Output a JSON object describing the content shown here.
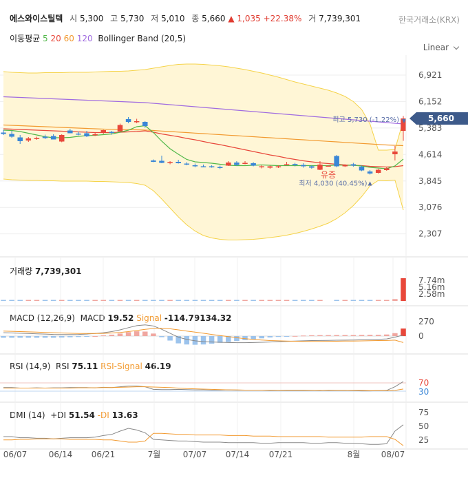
{
  "header": {
    "name": "에스와이스틸텍",
    "open_label": "시",
    "open": "5,300",
    "high_label": "고",
    "high": "5,730",
    "low_label": "저",
    "low": "5,010",
    "close_label": "종",
    "close": "5,660",
    "change": "▲ 1,035 +22.38%",
    "volume_label": "거",
    "volume": "7,739,301",
    "exchange": "한국거래소(KRX)"
  },
  "legend": {
    "ma_label": "이동평균",
    "ma5": "5",
    "ma20": "20",
    "ma60": "60",
    "ma120": "120",
    "bollinger": "Bollinger Band (20,5)"
  },
  "scale_mode": "Linear",
  "colors": {
    "up": "#e8473a",
    "down": "#3a86d6",
    "ma5": "#52b84a",
    "ma20": "#e8473a",
    "ma60": "#f29a30",
    "ma120": "#a06be0",
    "band_fill": "#fff6d6",
    "band_line": "#f5d34a",
    "badge": "#3d5a8a"
  },
  "price_axis": [
    "6,921",
    "6,152",
    "5,383",
    "4,614",
    "3,845",
    "3,076",
    "2,307"
  ],
  "current_price_badge": "5,660",
  "annotations": {
    "high": "최고 5,730 (-1.22%)",
    "low": "최저 4,030 (40.45%)",
    "suspended": "유증"
  },
  "volume_panel": {
    "label": "거래량",
    "value": "7,739,301",
    "axis": [
      "7.74m",
      "5.16m",
      "2.58m"
    ]
  },
  "macd_panel": {
    "title": "MACD (12,26,9)",
    "macd_label": "MACD",
    "macd_value": "19.52",
    "signal_label": "Signal",
    "signal_value": "-114.79134.32",
    "axis": [
      "270",
      "0"
    ]
  },
  "rsi_panel": {
    "title": "RSI (14,9)",
    "rsi_label": "RSI",
    "rsi_value": "75.11",
    "signal_label": "RSI-Signal",
    "signal_value": "46.19",
    "axis": [
      "70",
      "30"
    ]
  },
  "dmi_panel": {
    "title": "DMI (14)",
    "pdi_label": "+DI",
    "pdi_value": "51.54",
    "mdi_label": "-DI",
    "mdi_value": "13.63",
    "axis": [
      "75",
      "50",
      "25"
    ]
  },
  "x_axis": [
    "06/07",
    "06/14",
    "06/21",
    "7월",
    "07/07",
    "07/14",
    "07/21",
    "8월",
    "08/07"
  ],
  "chart_data": {
    "type": "candlestick",
    "ylim": [
      2000,
      7300
    ],
    "candles": [
      {
        "o": 5250,
        "h": 5330,
        "l": 5180,
        "c": 5210
      },
      {
        "o": 5210,
        "h": 5300,
        "l": 5100,
        "c": 5130
      },
      {
        "o": 5110,
        "h": 5180,
        "l": 4920,
        "c": 5000
      },
      {
        "o": 5020,
        "h": 5120,
        "l": 4980,
        "c": 5080
      },
      {
        "o": 5090,
        "h": 5130,
        "l": 5040,
        "c": 5090
      },
      {
        "o": 5130,
        "h": 5190,
        "l": 5060,
        "c": 5090
      },
      {
        "o": 5150,
        "h": 5200,
        "l": 5050,
        "c": 5050
      },
      {
        "o": 4990,
        "h": 5200,
        "l": 4970,
        "c": 5180
      },
      {
        "o": 5310,
        "h": 5360,
        "l": 5260,
        "c": 5230
      },
      {
        "o": 5220,
        "h": 5280,
        "l": 5170,
        "c": 5200
      },
      {
        "o": 5230,
        "h": 5300,
        "l": 5120,
        "c": 5140
      },
      {
        "o": 5200,
        "h": 5240,
        "l": 5150,
        "c": 5200
      },
      {
        "o": 5250,
        "h": 5330,
        "l": 5210,
        "c": 5320
      },
      {
        "o": 5270,
        "h": 5300,
        "l": 5190,
        "c": 5260
      },
      {
        "o": 5280,
        "h": 5510,
        "l": 5270,
        "c": 5470
      },
      {
        "o": 5640,
        "h": 5700,
        "l": 5520,
        "c": 5560
      },
      {
        "o": 5560,
        "h": 5650,
        "l": 5520,
        "c": 5580
      },
      {
        "o": 5560,
        "h": 5580,
        "l": 5390,
        "c": 5440
      },
      {
        "o": 4440,
        "h": 4470,
        "l": 4390,
        "c": 4400
      },
      {
        "o": 4430,
        "h": 4580,
        "l": 4360,
        "c": 4370
      },
      {
        "o": 4360,
        "h": 4420,
        "l": 4330,
        "c": 4390
      },
      {
        "o": 4400,
        "h": 4460,
        "l": 4350,
        "c": 4360
      },
      {
        "o": 4350,
        "h": 4390,
        "l": 4300,
        "c": 4320
      },
      {
        "o": 4300,
        "h": 4350,
        "l": 4240,
        "c": 4270
      },
      {
        "o": 4270,
        "h": 4320,
        "l": 4240,
        "c": 4260
      },
      {
        "o": 4270,
        "h": 4300,
        "l": 4230,
        "c": 4260
      },
      {
        "o": 4250,
        "h": 4290,
        "l": 4190,
        "c": 4220
      },
      {
        "o": 4290,
        "h": 4420,
        "l": 4280,
        "c": 4380
      },
      {
        "o": 4380,
        "h": 4420,
        "l": 4280,
        "c": 4310
      },
      {
        "o": 4340,
        "h": 4420,
        "l": 4330,
        "c": 4370
      },
      {
        "o": 4360,
        "h": 4390,
        "l": 4270,
        "c": 4290
      },
      {
        "o": 4240,
        "h": 4300,
        "l": 4210,
        "c": 4270
      },
      {
        "o": 4230,
        "h": 4290,
        "l": 4200,
        "c": 4270
      },
      {
        "o": 4260,
        "h": 4300,
        "l": 4220,
        "c": 4270
      },
      {
        "o": 4330,
        "h": 4400,
        "l": 4300,
        "c": 4330
      },
      {
        "o": 4340,
        "h": 4370,
        "l": 4270,
        "c": 4330
      },
      {
        "o": 4310,
        "h": 4360,
        "l": 4230,
        "c": 4270
      },
      {
        "o": 4270,
        "h": 4300,
        "l": 4200,
        "c": 4230
      },
      {
        "o": 4170,
        "h": 4420,
        "l": 4160,
        "c": 4320
      },
      {
        "o": 4290,
        "h": 4290,
        "l": 4290,
        "c": 4290
      },
      {
        "o": 4570,
        "h": 4600,
        "l": 4240,
        "c": 4270
      },
      {
        "o": 4270,
        "h": 4330,
        "l": 4250,
        "c": 4310
      },
      {
        "o": 4330,
        "h": 4370,
        "l": 4260,
        "c": 4290
      },
      {
        "o": 4260,
        "h": 4290,
        "l": 4130,
        "c": 4150
      },
      {
        "o": 4120,
        "h": 4160,
        "l": 4030,
        "c": 4060
      },
      {
        "o": 4080,
        "h": 4200,
        "l": 4060,
        "c": 4170
      },
      {
        "o": 4160,
        "h": 4240,
        "l": 4140,
        "c": 4210
      },
      {
        "o": 4620,
        "h": 4860,
        "l": 4440,
        "c": 4700
      },
      {
        "o": 5300,
        "h": 5730,
        "l": 5010,
        "c": 5660
      }
    ],
    "ma5": [
      5320,
      5310,
      5280,
      5230,
      5180,
      5130,
      5100,
      5100,
      5110,
      5140,
      5160,
      5170,
      5190,
      5210,
      5260,
      5320,
      5420,
      5450,
      5250,
      5000,
      4780,
      4620,
      4470,
      4400,
      4380,
      4360,
      4330,
      4300,
      4290,
      4290,
      4300,
      4310,
      4300,
      4290,
      4290,
      4290,
      4290,
      4290,
      4290,
      4290,
      4310,
      4300,
      4300,
      4280,
      4240,
      4220,
      4200,
      4280,
      4480
    ],
    "ma20": [
      5360,
      5350,
      5340,
      5330,
      5320,
      5310,
      5300,
      5290,
      5280,
      5270,
      5260,
      5250,
      5250,
      5250,
      5260,
      5270,
      5280,
      5300,
      5260,
      5210,
      5170,
      5130,
      5080,
      5040,
      4990,
      4940,
      4900,
      4850,
      4800,
      4750,
      4700,
      4650,
      4600,
      4560,
      4510,
      4470,
      4430,
      4400,
      4370,
      4350,
      4330,
      4310,
      4300,
      4290,
      4270,
      4260,
      4250,
      4260,
      4290
    ],
    "ma60": [
      5470,
      5460,
      5450,
      5440,
      5430,
      5420,
      5410,
      5400,
      5390,
      5380,
      5370,
      5360,
      5350,
      5345,
      5340,
      5335,
      5330,
      5325,
      5310,
      5295,
      5280,
      5265,
      5250,
      5235,
      5220,
      5205,
      5190,
      5175,
      5160,
      5145,
      5130,
      5115,
      5100,
      5085,
      5070,
      5055,
      5040,
      5025,
      5010,
      4995,
      4980,
      4965,
      4950,
      4935,
      4920,
      4905,
      4890,
      4880,
      4870
    ],
    "ma120": [
      6290,
      6280,
      6270,
      6260,
      6250,
      6240,
      6230,
      6220,
      6210,
      6200,
      6190,
      6180,
      6170,
      6160,
      6150,
      6140,
      6130,
      6120,
      6100,
      6080,
      6060,
      6040,
      6020,
      6000,
      5980,
      5960,
      5940,
      5920,
      5900,
      5880,
      5860,
      5840,
      5820,
      5800,
      5780,
      5760,
      5740,
      5720,
      5700,
      5680,
      5660,
      5640,
      5620,
      5600,
      5580,
      5560,
      5540,
      5520,
      5500
    ],
    "bb_upper": [
      7020,
      7000,
      6990,
      6980,
      6980,
      6990,
      6990,
      6990,
      7000,
      7000,
      7000,
      7010,
      7020,
      7030,
      7030,
      7040,
      7060,
      7080,
      7120,
      7160,
      7200,
      7230,
      7240,
      7240,
      7230,
      7210,
      7190,
      7160,
      7120,
      7080,
      7030,
      6980,
      6920,
      6860,
      6790,
      6720,
      6660,
      6600,
      6540,
      6480,
      6400,
      6300,
      6150,
      5920,
      5500,
      4740,
      4740,
      4760,
      5600
    ],
    "bb_lower": [
      3900,
      3880,
      3870,
      3860,
      3860,
      3850,
      3850,
      3840,
      3840,
      3840,
      3840,
      3830,
      3830,
      3820,
      3810,
      3800,
      3770,
      3720,
      3560,
      3320,
      3060,
      2800,
      2570,
      2390,
      2260,
      2190,
      2150,
      2130,
      2130,
      2140,
      2150,
      2170,
      2200,
      2230,
      2270,
      2320,
      2380,
      2450,
      2530,
      2620,
      2750,
      2920,
      3130,
      3390,
      3700,
      3860,
      3850,
      3870,
      3000
    ],
    "volume": [
      0.05,
      0.08,
      0.06,
      0.05,
      0.04,
      0.05,
      0.07,
      0.09,
      0.15,
      0.06,
      0.05,
      0.06,
      0.07,
      0.05,
      0.04,
      0.18,
      0.1,
      0.08,
      0.1,
      0.08,
      0.07,
      0.12,
      0.09,
      0.08,
      0.06,
      0.05,
      0.05,
      0.05,
      0.06,
      0.05,
      0.06,
      0.05,
      0.04,
      0.04,
      0.05,
      0.04,
      0.05,
      0.04,
      0.05,
      0.0,
      0.05,
      0.04,
      0.05,
      0.03,
      0.04,
      0.04,
      0.05,
      0.64,
      7.74
    ],
    "macd": [
      60,
      55,
      50,
      45,
      40,
      35,
      30,
      28,
      28,
      30,
      35,
      45,
      60,
      80,
      110,
      150,
      185,
      200,
      180,
      120,
      50,
      -20,
      -60,
      -85,
      -100,
      -105,
      -110,
      -115,
      -118,
      -118,
      -115,
      -110,
      -105,
      -100,
      -95,
      -90,
      -85,
      -80,
      -78,
      -76,
      -74,
      -72,
      -70,
      -66,
      -62,
      -58,
      -50,
      -20,
      19.52
    ],
    "signal": [
      90,
      85,
      80,
      75,
      70,
      65,
      60,
      55,
      50,
      47,
      45,
      45,
      48,
      55,
      65,
      80,
      100,
      120,
      135,
      140,
      130,
      110,
      90,
      70,
      50,
      30,
      10,
      -10,
      -30,
      -45,
      -60,
      -70,
      -80,
      -85,
      -90,
      -92,
      -94,
      -94,
      -94,
      -93,
      -92,
      -90,
      -88,
      -86,
      -84,
      -80,
      -78,
      -72,
      -114.79
    ],
    "rsi": [
      52,
      52,
      50,
      50,
      51,
      50,
      51,
      51,
      52,
      52,
      52,
      51,
      53,
      52,
      55,
      58,
      58,
      55,
      45,
      44,
      44,
      45,
      44,
      43,
      43,
      42,
      42,
      43,
      42,
      42,
      42,
      42,
      41,
      41,
      42,
      42,
      42,
      41,
      40,
      42,
      41,
      41,
      40,
      39,
      39,
      40,
      41,
      55,
      75.11
    ],
    "rsi_signal": [
      50,
      50,
      50,
      50,
      50,
      50,
      50,
      50,
      50,
      51,
      51,
      51,
      52,
      52,
      53,
      54,
      55,
      55,
      54,
      53,
      52,
      50,
      48,
      47,
      46,
      45,
      44,
      43,
      43,
      42,
      42,
      42,
      42,
      41,
      41,
      41,
      41,
      41,
      41,
      41,
      41,
      41,
      41,
      41,
      40,
      40,
      40,
      41,
      46.19
    ],
    "pdi": [
      30,
      30,
      28,
      28,
      27,
      27,
      26,
      27,
      28,
      28,
      28,
      29,
      32,
      34,
      40,
      45,
      42,
      37,
      25,
      24,
      23,
      22,
      22,
      21,
      20,
      20,
      20,
      19,
      19,
      19,
      19,
      18,
      18,
      19,
      19,
      19,
      19,
      18,
      18,
      19,
      19,
      18,
      18,
      17,
      16,
      16,
      17,
      40,
      51.54
    ],
    "mdi": [
      24,
      24,
      25,
      25,
      26,
      26,
      26,
      26,
      25,
      25,
      25,
      25,
      24,
      24,
      22,
      20,
      20,
      22,
      36,
      36,
      35,
      34,
      34,
      33,
      33,
      33,
      33,
      32,
      32,
      32,
      31,
      31,
      31,
      30,
      30,
      30,
      30,
      30,
      30,
      29,
      29,
      29,
      29,
      29,
      30,
      30,
      30,
      25,
      13.63
    ]
  }
}
